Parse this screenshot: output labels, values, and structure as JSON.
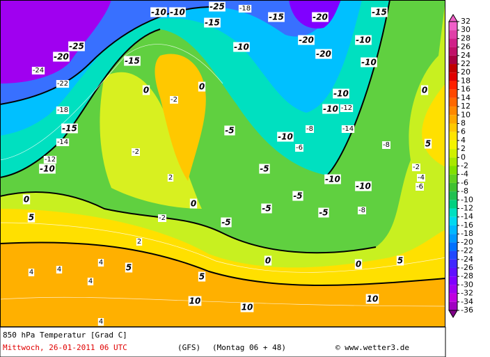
{
  "map": {
    "title": "850 hPa Temperatur [Grad C]",
    "valid_time": "Mittwoch, 26-01-2011  06 UTC",
    "model": "(GFS)",
    "run": "(Montag 06 + 48)",
    "source": "© www.wetter3.de",
    "colorbar": {
      "levels": [
        32,
        30,
        28,
        26,
        24,
        22,
        20,
        18,
        16,
        14,
        12,
        10,
        8,
        6,
        4,
        2,
        0,
        -2,
        -4,
        -6,
        -8,
        -10,
        -12,
        -14,
        -16,
        -18,
        -20,
        -22,
        -24,
        -26,
        -28,
        -30,
        -32,
        -34,
        -36
      ],
      "colors": [
        "#f060c8",
        "#e040a8",
        "#d02088",
        "#c01068",
        "#a80040",
        "#c00000",
        "#e00000",
        "#ff2000",
        "#ff4800",
        "#ff6800",
        "#ff8800",
        "#ffa800",
        "#ffc800",
        "#ffe400",
        "#f4f400",
        "#d0f000",
        "#a8e800",
        "#80e000",
        "#60d020",
        "#40c030",
        "#20c050",
        "#00d080",
        "#00e0c0",
        "#00d8f0",
        "#00b8ff",
        "#0098ff",
        "#0070ff",
        "#2048ff",
        "#4028ff",
        "#6010ff",
        "#8000ff",
        "#a000f0",
        "#c000e0",
        "#a000c0",
        "#800088"
      ]
    },
    "labels": [
      -10,
      -10,
      -10,
      -15,
      -20,
      -15,
      -20,
      -20,
      -10,
      -10,
      -10,
      -10,
      -10,
      -10,
      -10,
      -20,
      -15,
      -10,
      0,
      0,
      0,
      0,
      0,
      0,
      0,
      5,
      -5,
      -5,
      -5,
      -5,
      -5,
      -5,
      5,
      5,
      5,
      5,
      10,
      10,
      10,
      -15,
      -25,
      -25,
      -15,
      -18,
      -24,
      -22,
      -18,
      -14,
      -12,
      -2,
      2,
      -2,
      -2,
      2,
      4,
      4,
      4,
      4,
      4,
      -6,
      -8,
      -12,
      -14,
      -8,
      -8,
      -2,
      -4,
      -6
    ]
  }
}
